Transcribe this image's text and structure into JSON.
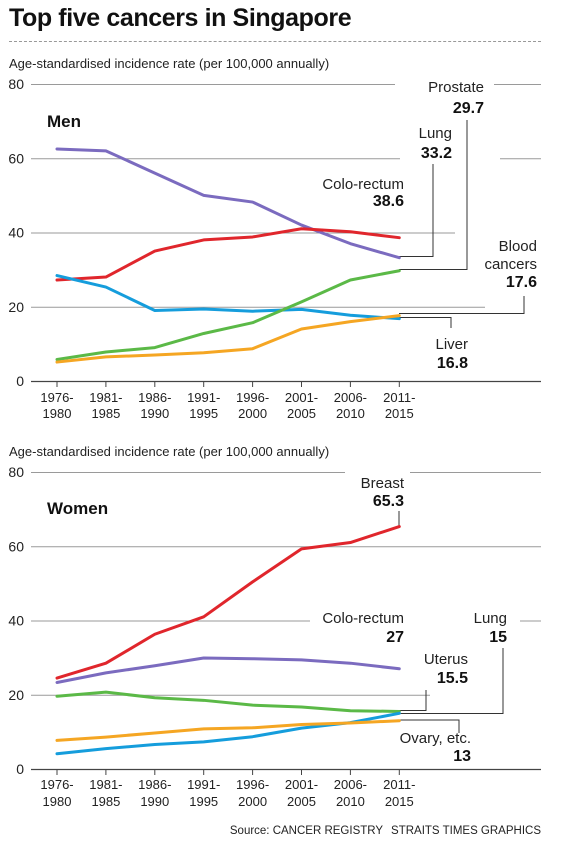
{
  "title": "Top five cancers in Singapore",
  "source": "Source: CANCER REGISTRY",
  "credit": "STRAITS TIMES GRAPHICS",
  "chart_data": [
    {
      "type": "line",
      "title": "Men",
      "ylabel": "Age-standardised incidence rate (per 100,000 annually)",
      "ylim": [
        0,
        80
      ],
      "yticks": [
        0,
        20,
        40,
        60,
        80
      ],
      "categories": [
        "1976-1980",
        "1981-1985",
        "1986-1990",
        "1991-1995",
        "1996-2000",
        "2001-2005",
        "2006-2010",
        "2011-2015"
      ],
      "series": [
        {
          "name": "Lung",
          "color": "#7b6bbf",
          "values": [
            62.5,
            62,
            56,
            50,
            48.2,
            42,
            37,
            33.2
          ],
          "label": "Lung",
          "value_label": "33.2"
        },
        {
          "name": "Colo-rectum",
          "color": "#e0262c",
          "values": [
            27.2,
            28,
            35,
            38,
            38.8,
            41,
            40.2,
            38.6
          ],
          "label": "Colo-rectum",
          "value_label": "38.6"
        },
        {
          "name": "Liver",
          "color": "#159ddc",
          "values": [
            28.4,
            25.3,
            19,
            19.4,
            18.8,
            19.3,
            17.7,
            16.8
          ],
          "label": "Liver",
          "value_label": "16.8"
        },
        {
          "name": "Prostate",
          "color": "#5bb947",
          "values": [
            5.8,
            7.8,
            9,
            12.8,
            15.7,
            21.3,
            27.2,
            29.7
          ],
          "label": "Prostate",
          "value_label": "29.7"
        },
        {
          "name": "Blood cancers",
          "color": "#f5a623",
          "values": [
            5.1,
            6.5,
            7,
            7.6,
            8.7,
            14,
            16,
            17.6
          ],
          "label": "Blood cancers",
          "label_lines": [
            "Blood",
            "cancers"
          ],
          "value_label": "17.6"
        }
      ]
    },
    {
      "type": "line",
      "title": "Women",
      "ylabel": "Age-standardised incidence rate (per 100,000  annually)",
      "ylim": [
        0,
        80
      ],
      "yticks": [
        0,
        20,
        40,
        60,
        80
      ],
      "categories": [
        "1976-1980",
        "1981-1985",
        "1986-1990",
        "1991-1995",
        "1996-2000",
        "2001-2005",
        "2006-2010",
        "2011-2015"
      ],
      "series": [
        {
          "name": "Breast",
          "color": "#e0262c",
          "values": [
            24.5,
            28.5,
            36.3,
            41,
            50.4,
            59.3,
            61,
            65.3
          ],
          "label": "Breast",
          "value_label": "65.3"
        },
        {
          "name": "Colo-rectum",
          "color": "#7b6bbf",
          "values": [
            23.3,
            25.9,
            27.8,
            29.9,
            29.7,
            29.4,
            28.5,
            27
          ],
          "label": "Colo-rectum",
          "value_label": "27"
        },
        {
          "name": "Uterus",
          "color": "#5bb947",
          "values": [
            19.6,
            20.7,
            19.2,
            18.5,
            17.2,
            16.7,
            15.7,
            15.5
          ],
          "label": "Uterus",
          "value_label": "15.5"
        },
        {
          "name": "Lung",
          "color": "#159ddc",
          "values": [
            4.1,
            5.5,
            6.6,
            7.3,
            8.7,
            11,
            12.5,
            15
          ],
          "label": "Lung",
          "value_label": "15"
        },
        {
          "name": "Ovary, etc.",
          "color": "#f5a623",
          "values": [
            7.7,
            8.6,
            9.7,
            10.8,
            11.1,
            12,
            12.4,
            13
          ],
          "label": "Ovary, etc.",
          "value_label": "13"
        }
      ]
    }
  ]
}
